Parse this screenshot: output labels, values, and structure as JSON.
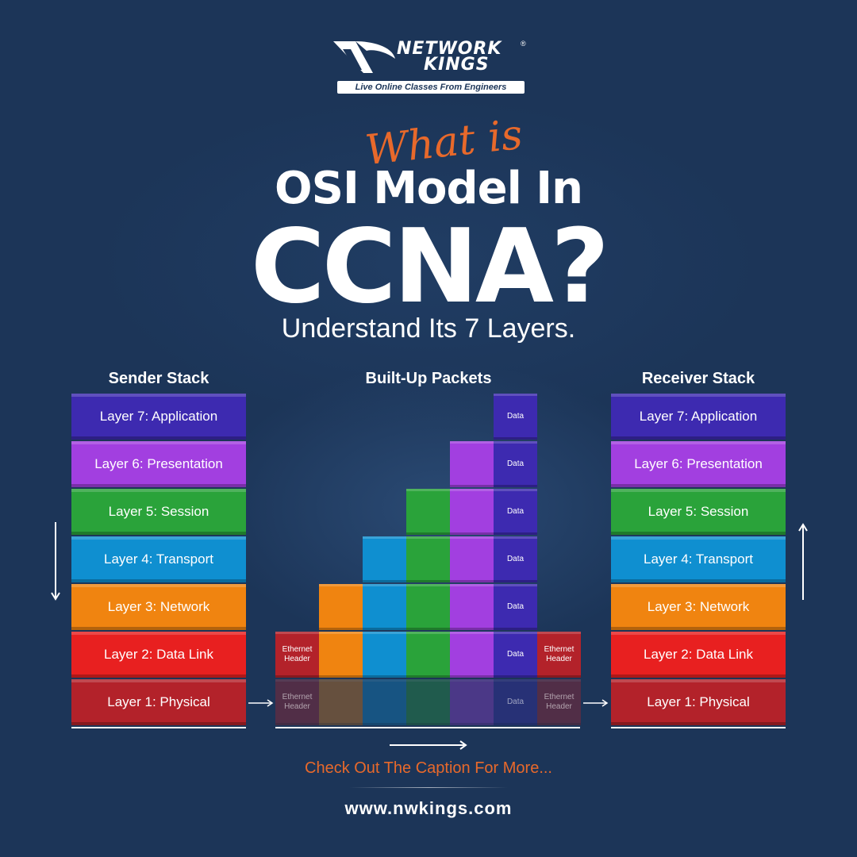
{
  "brand": {
    "name_line1": "NETWORK",
    "name_line2": "KINGS",
    "registered": "®",
    "tagline": "Live Online Classes From Engineers"
  },
  "headline": {
    "script_text": "What is",
    "line1": "OSI Model In",
    "line2": "CCNA?",
    "subtitle": "Understand Its 7 Layers."
  },
  "sections": {
    "sender_title": "Sender Stack",
    "packets_title": "Built-Up Packets",
    "receiver_title": "Receiver Stack"
  },
  "layers": [
    {
      "label": "Layer 7: Application",
      "color": "#3d2ab0"
    },
    {
      "label": "Layer 6: Presentation",
      "color": "#a23fe0"
    },
    {
      "label": "Layer 5: Session",
      "color": "#2aa33a"
    },
    {
      "label": "Layer 4: Transport",
      "color": "#0f8fd0"
    },
    {
      "label": "Layer 3: Network",
      "color": "#f08410"
    },
    {
      "label": "Layer 2: Data Link",
      "color": "#e82020"
    },
    {
      "label": "Layer 1: Physical",
      "color": "#b3222a"
    }
  ],
  "packets": {
    "data_label": "Data",
    "header_label_line1": "Ethernet",
    "header_label_line2": "Header",
    "colors": {
      "ethernet": "#b3222a",
      "network": "#f08410",
      "transport": "#0f8fd0",
      "session": "#2aa33a",
      "presentation": "#a23fe0",
      "application": "#3d2ab0"
    }
  },
  "footer": {
    "caption": "Check Out The Caption For More...",
    "url": "www.nwkings.com"
  }
}
